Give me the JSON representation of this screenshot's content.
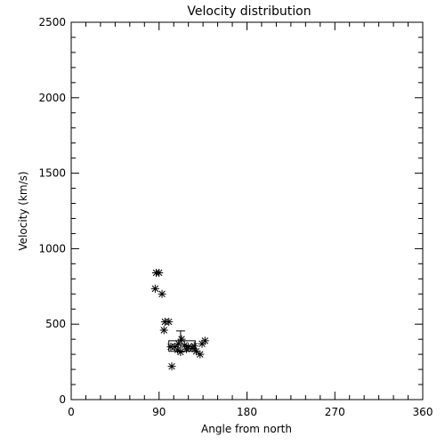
{
  "chart_data": {
    "type": "scatter",
    "title": "Velocity distribution",
    "xlabel": "Angle from north",
    "ylabel": "Velocity (km/s)",
    "xlim": [
      0,
      360
    ],
    "ylim": [
      0,
      2500
    ],
    "x_ticks": [
      0,
      90,
      180,
      270,
      360
    ],
    "x_tick_labels": [
      "0",
      "90",
      "180",
      "270",
      "360"
    ],
    "y_ticks": [
      0,
      500,
      1000,
      1500,
      2000,
      2500
    ],
    "y_tick_labels": [
      "0",
      "500",
      "1000",
      "1500",
      "2000",
      "2500"
    ],
    "grid": false,
    "legend": "none",
    "marker": "asterisk",
    "points": [
      {
        "x": 87,
        "y": 840
      },
      {
        "x": 90,
        "y": 840
      },
      {
        "x": 86,
        "y": 735
      },
      {
        "x": 93,
        "y": 700
      },
      {
        "x": 96,
        "y": 515
      },
      {
        "x": 100,
        "y": 515
      },
      {
        "x": 95,
        "y": 460
      },
      {
        "x": 102,
        "y": 350
      },
      {
        "x": 106,
        "y": 350
      },
      {
        "x": 110,
        "y": 370
      },
      {
        "x": 113,
        "y": 400
      },
      {
        "x": 109,
        "y": 330
      },
      {
        "x": 116,
        "y": 360
      },
      {
        "x": 120,
        "y": 350
      },
      {
        "x": 124,
        "y": 340
      },
      {
        "x": 128,
        "y": 320
      },
      {
        "x": 112,
        "y": 315
      },
      {
        "x": 132,
        "y": 300
      },
      {
        "x": 134,
        "y": 370
      },
      {
        "x": 137,
        "y": 390
      },
      {
        "x": 103,
        "y": 220
      },
      {
        "x": 118,
        "y": 335
      },
      {
        "x": 126,
        "y": 355
      }
    ],
    "error_box": {
      "x": 112,
      "y": 355,
      "x_low": 100,
      "x_high": 127,
      "y_low": 320,
      "y_high": 390,
      "y_err_high": 455
    }
  }
}
